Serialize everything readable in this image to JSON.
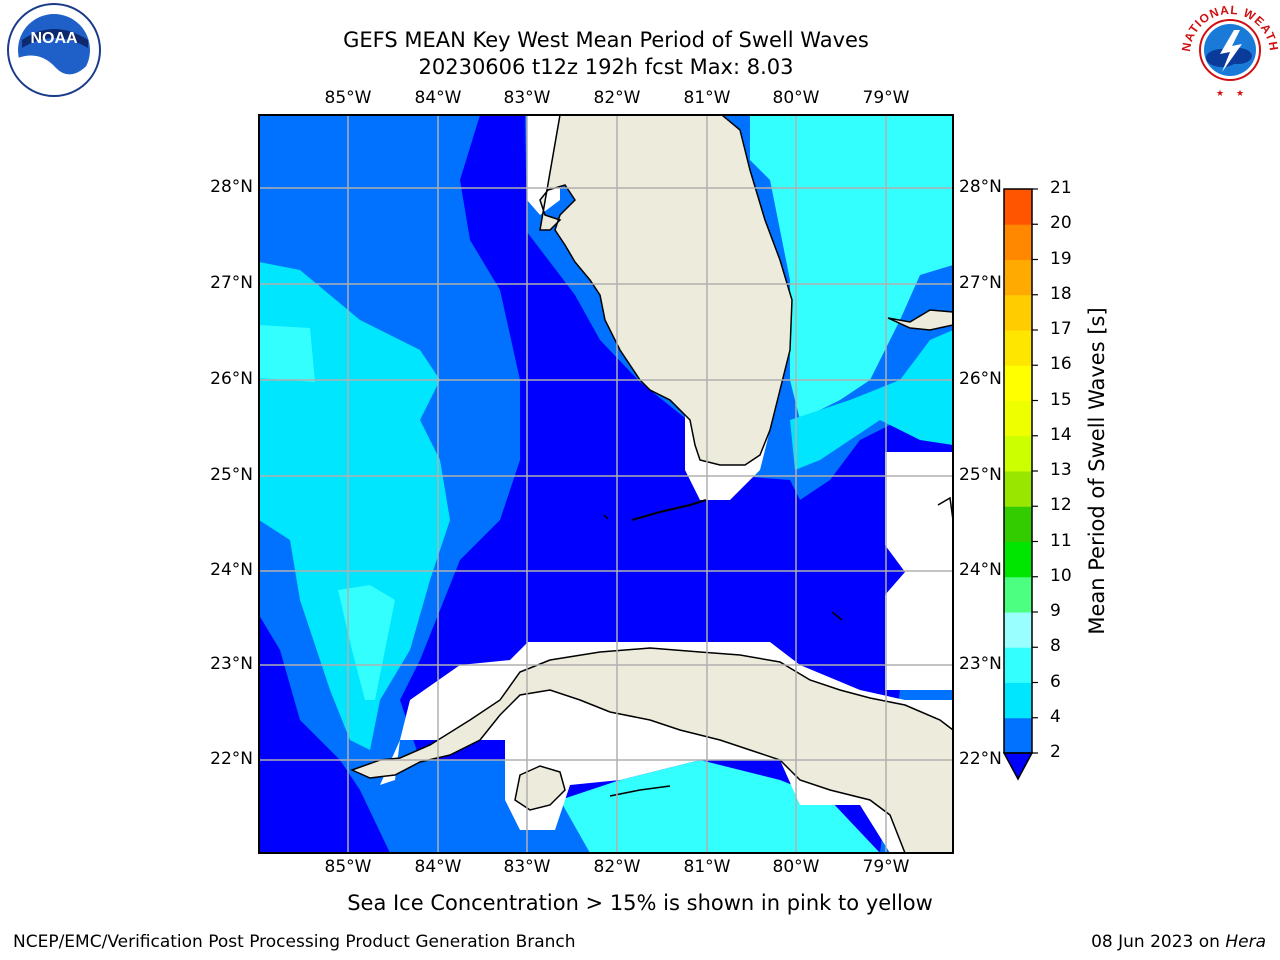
{
  "title": {
    "line1": "GEFS MEAN Key West Mean Period of Swell Waves",
    "line2": "20230606 t12z 192h fcst   Max: 8.03"
  },
  "map": {
    "lon_ticks": [
      "85°W",
      "84°W",
      "83°W",
      "82°W",
      "81°W",
      "80°W",
      "79°W"
    ],
    "lat_ticks": [
      "28°N",
      "27°N",
      "26°N",
      "25°N",
      "24°N",
      "23°N",
      "22°N"
    ]
  },
  "colorbar": {
    "label": "Mean Period of Swell Waves [s]",
    "ticks": [
      "2",
      "4",
      "6",
      "8",
      "9",
      "10",
      "11",
      "12",
      "13",
      "14",
      "15",
      "16",
      "17",
      "18",
      "19",
      "20",
      "21"
    ],
    "colors": [
      "#0072ff",
      "#00e6ff",
      "#33ffff",
      "#99ffff",
      "#4dff80",
      "#00e600",
      "#33cc00",
      "#99e600",
      "#ccff00",
      "#eeff00",
      "#ffff00",
      "#ffe600",
      "#ffcc00",
      "#ffaa00",
      "#ff8800",
      "#ff5500",
      "#ff2a00",
      "#ff0000"
    ],
    "under_color": "#0000ff"
  },
  "caption": "Sea Ice Concentration > 15% is shown in pink to yellow",
  "footer": {
    "left": "NCEP/EMC/Verification Post Processing Product Generation Branch",
    "right_date": "08 Jun 2023 on ",
    "right_host": "Hera"
  },
  "logos": {
    "noaa": "NOAA",
    "nws": "NATIONAL WEATHER SERVICE"
  }
}
